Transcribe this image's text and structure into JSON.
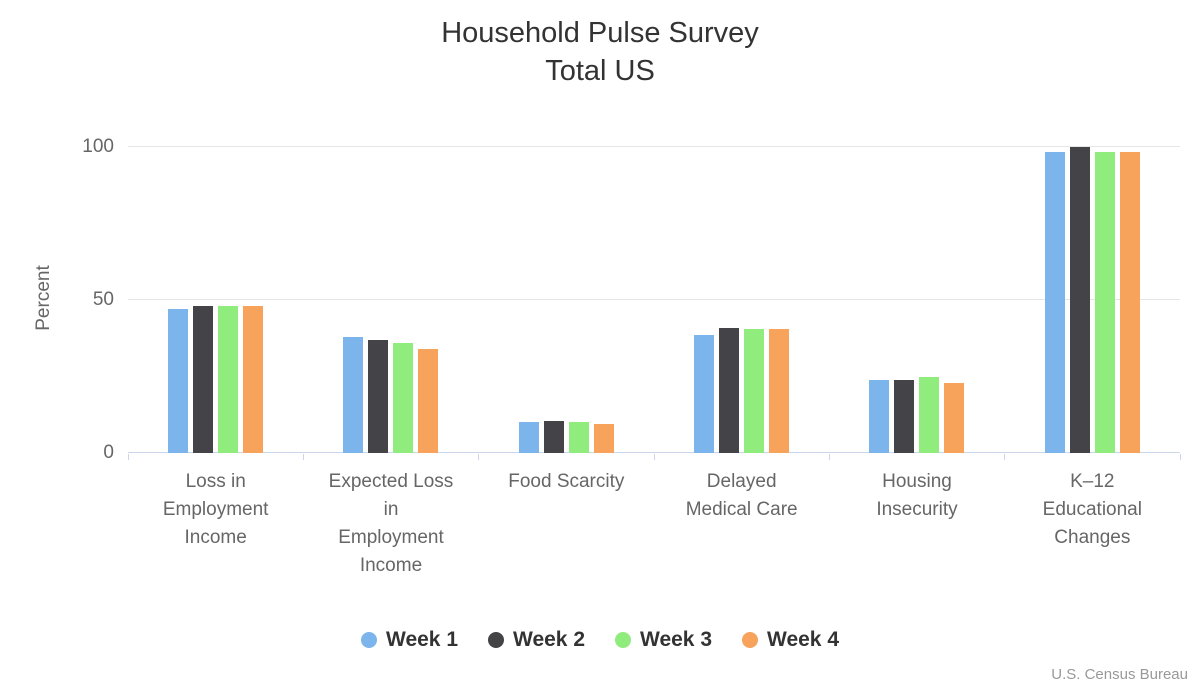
{
  "title": {
    "line1": "Household Pulse Survey",
    "line2": "Total US"
  },
  "credits": "U.S. Census Bureau",
  "chart_data": {
    "type": "bar",
    "title": "Household Pulse Survey Total US",
    "xlabel": "",
    "ylabel": "Percent",
    "ylim": [
      0,
      100
    ],
    "yticks": [
      0,
      50,
      100
    ],
    "grid": true,
    "legend_position": "bottom",
    "categories": [
      "Loss in Employment Income",
      "Expected Loss in Employment Income",
      "Food Scarcity",
      "Delayed Medical Care",
      "Housing Insecurity",
      "K–12 Educational Changes"
    ],
    "category_display": [
      "Loss in\nEmployment\nIncome",
      "Expected Loss\nin\nEmployment\nIncome",
      "Food Scarcity",
      "Delayed\nMedical Care",
      "Housing\nInsecurity",
      "K–12\nEducational\nChanges"
    ],
    "series": [
      {
        "name": "Week 1",
        "color": "#7cb5ec",
        "values": [
          47,
          38,
          10,
          38.5,
          24,
          98.5
        ]
      },
      {
        "name": "Week 2",
        "color": "#434348",
        "values": [
          48,
          37,
          10.5,
          41,
          24,
          100
        ]
      },
      {
        "name": "Week 3",
        "color": "#90ed7d",
        "values": [
          48,
          36,
          10,
          40.5,
          25,
          98.5
        ]
      },
      {
        "name": "Week 4",
        "color": "#f7a35c",
        "values": [
          48,
          34,
          9.5,
          40.5,
          23,
          98.5
        ]
      }
    ]
  },
  "colors": {
    "title": "#333333",
    "axis_labels": "#666666",
    "gridline": "#e6e6e6",
    "axis_line": "#ccd6eb",
    "legend_text": "#333333",
    "credits_text": "#999999"
  }
}
